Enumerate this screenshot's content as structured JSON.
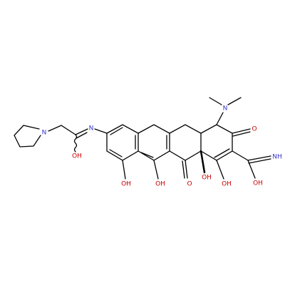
{
  "atoms": [
    "N",
    "N",
    "OH",
    "N",
    "O",
    "NH",
    "OH",
    "OH",
    "OH",
    "O",
    "OH",
    "OH"
  ]
}
